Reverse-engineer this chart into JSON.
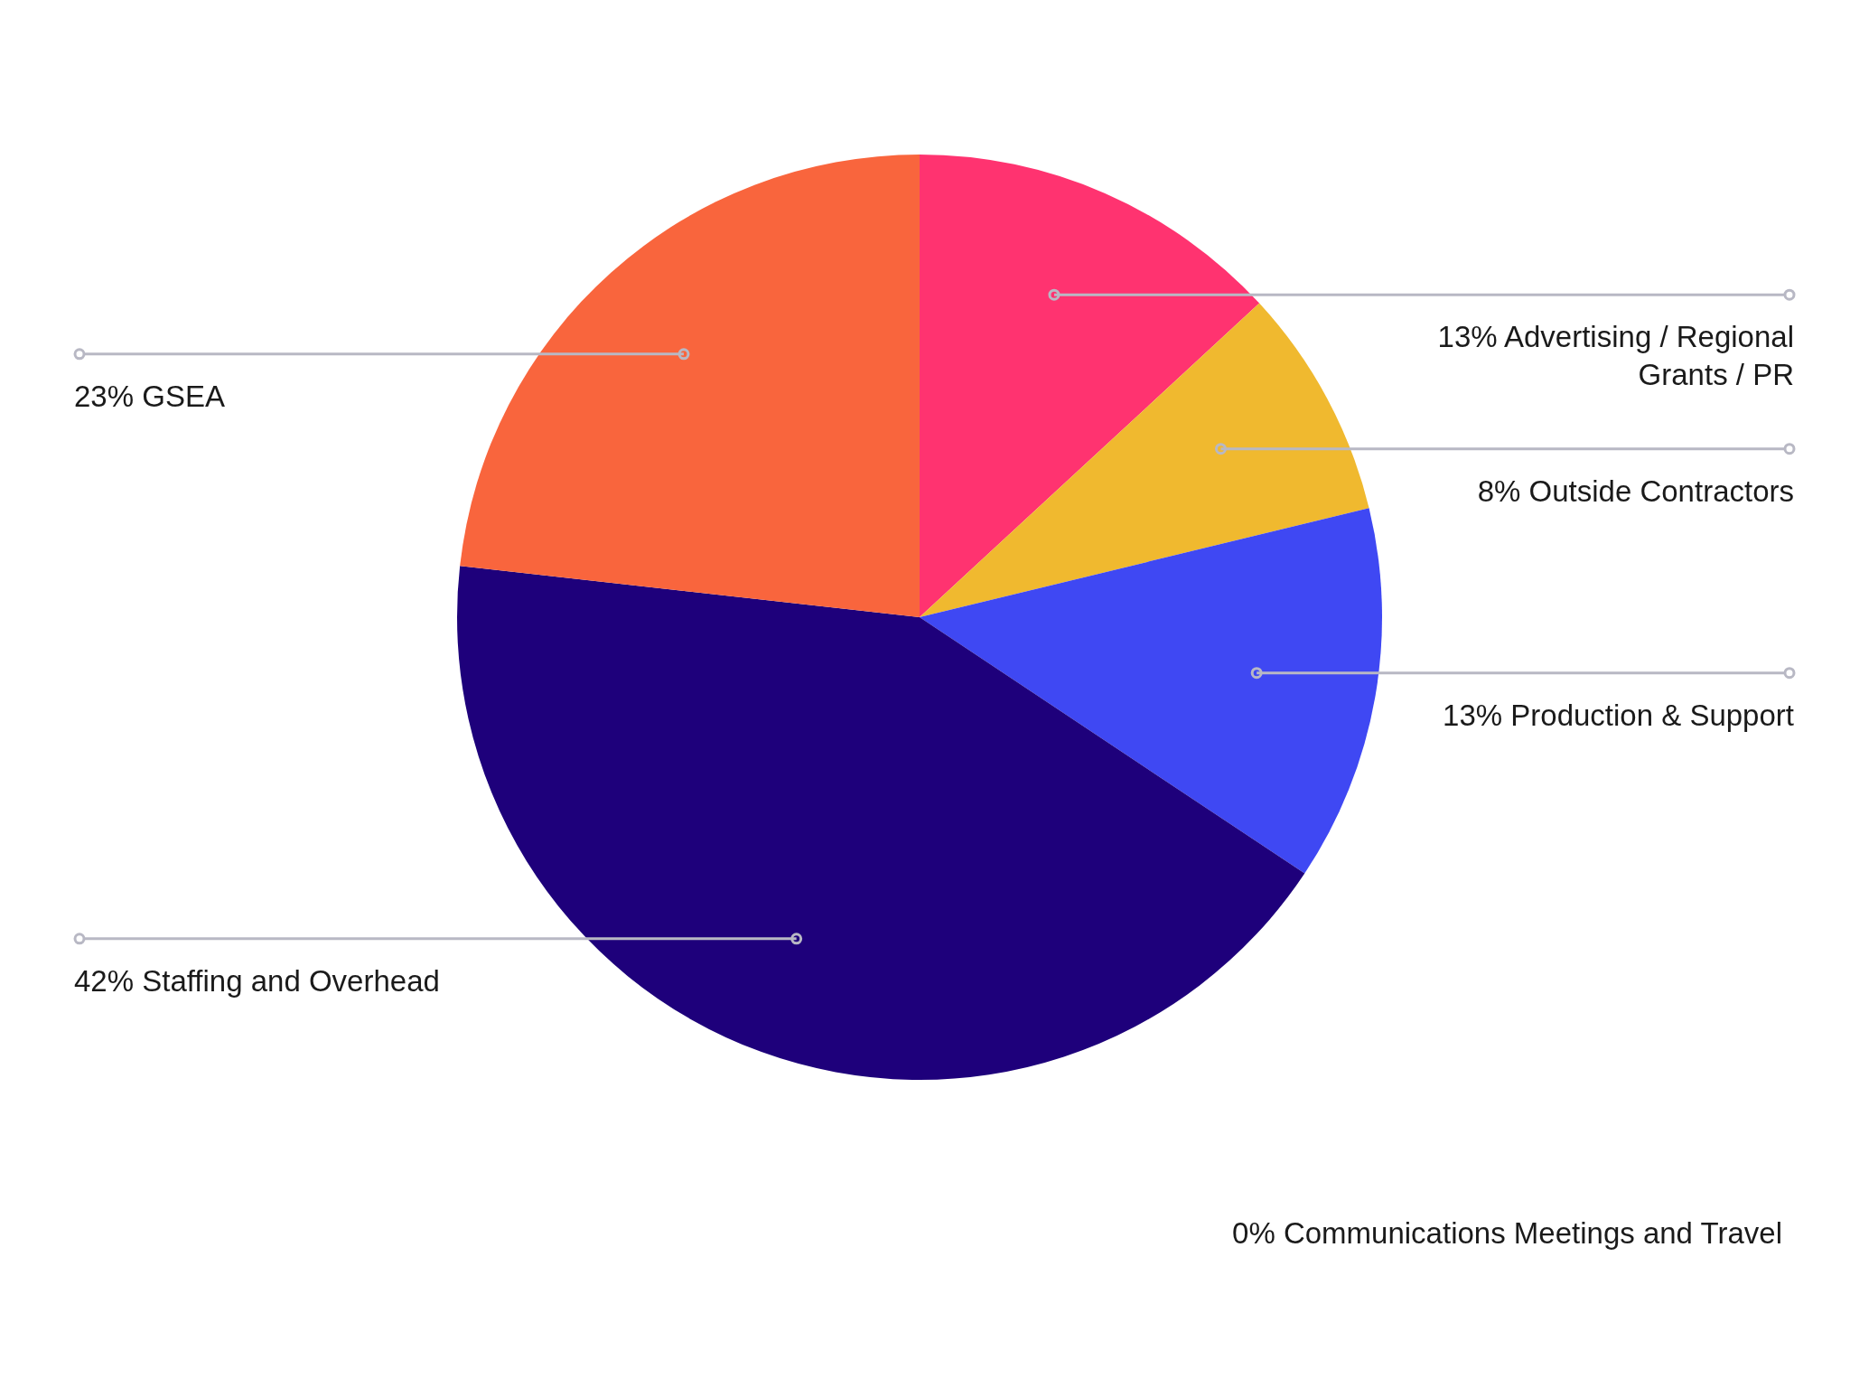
{
  "chart_data": {
    "type": "pie",
    "categories": [
      "Advertising / Regional Grants / PR",
      "Outside Contractors",
      "Production & Support",
      "Staffing and Overhead",
      "GSEA",
      "Communications Meetings and Travel"
    ],
    "values": [
      13,
      8,
      13,
      42,
      23,
      0
    ],
    "value_labels": [
      "13%",
      "8%",
      "13%",
      "42%",
      "23%",
      "0%"
    ],
    "colors": [
      "#ff3370",
      "#f0b92f",
      "#3f48f3",
      "#1e007b",
      "#f9653d",
      "#b8b8c4"
    ],
    "legend": false
  }
}
